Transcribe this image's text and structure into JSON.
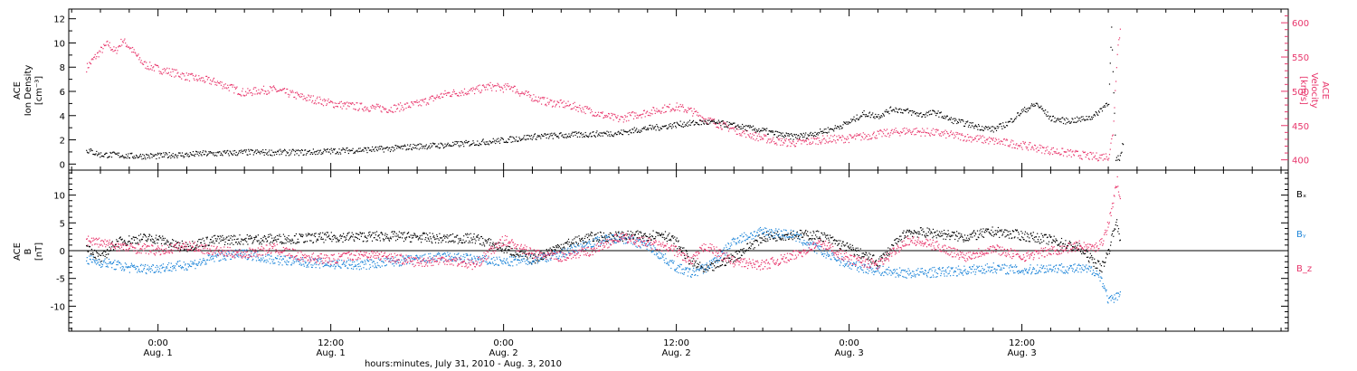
{
  "chart_data": [
    {
      "type": "scatter",
      "panel": "top",
      "ylabel_left": [
        "ACE",
        "Ion Density",
        "[cm⁻³]"
      ],
      "ylabel_right": [
        "ACE",
        "Velocity",
        "[km/s]"
      ],
      "ylim_left": [
        -0.5,
        12.8
      ],
      "ylim_right": [
        385,
        620
      ],
      "yticks_left": [
        0,
        2,
        4,
        6,
        8,
        10,
        12
      ],
      "yticks_right": [
        400,
        450,
        500,
        550,
        600
      ],
      "series": [
        {
          "axis": "left",
          "color": "#000000",
          "x_hours": [
            -5,
            -4.5,
            -4,
            -3,
            -2,
            -1,
            0,
            1,
            2,
            3,
            4,
            6,
            8,
            10,
            12,
            14,
            16,
            18,
            20,
            22,
            24,
            26,
            28,
            30,
            32,
            33,
            34,
            35,
            36,
            37,
            38,
            39,
            40,
            41,
            42,
            43,
            44,
            45,
            46,
            47,
            48,
            49,
            50,
            51,
            52,
            53,
            54,
            55,
            56,
            57,
            58,
            59,
            60,
            61,
            62,
            63,
            64,
            65,
            65.5,
            66,
            66.2,
            66.5,
            66.8,
            67
          ],
          "values": [
            1.2,
            1.0,
            0.8,
            0.8,
            0.7,
            0.7,
            0.7,
            0.8,
            0.8,
            0.9,
            0.9,
            1.0,
            1.0,
            1.0,
            1.1,
            1.2,
            1.3,
            1.5,
            1.6,
            1.8,
            2.0,
            2.3,
            2.4,
            2.5,
            2.6,
            2.8,
            3.0,
            3.1,
            3.3,
            3.4,
            3.5,
            3.4,
            3.2,
            3.0,
            2.8,
            2.5,
            2.3,
            2.4,
            2.7,
            3.0,
            3.5,
            4.2,
            4.0,
            4.6,
            4.4,
            4.1,
            4.3,
            3.7,
            3.4,
            3.1,
            2.9,
            3.4,
            4.4,
            5.0,
            3.8,
            3.6,
            3.7,
            4.0,
            4.6,
            5.2,
            11.2,
            0.4,
            0.6,
            1.8
          ]
        },
        {
          "axis": "right",
          "color": "#e8356b",
          "x_hours": [
            -5,
            -4.5,
            -4,
            -3.5,
            -3,
            -2.5,
            -2,
            -1.5,
            -1,
            0,
            1,
            2,
            3,
            4,
            5,
            6,
            7,
            8,
            9,
            10,
            11,
            12,
            13,
            14,
            16,
            18,
            20,
            22,
            23,
            24,
            24.5,
            25,
            26,
            27,
            28,
            29,
            30,
            31,
            32,
            33,
            34,
            35,
            36,
            37,
            38,
            39,
            40,
            41,
            42,
            43,
            44,
            45,
            46,
            48,
            50,
            52,
            54,
            56,
            58,
            60,
            62,
            64,
            65,
            66,
            66.3,
            66.6,
            66.8
          ],
          "values": [
            535,
            548,
            560,
            570,
            558,
            575,
            565,
            552,
            540,
            533,
            528,
            522,
            518,
            514,
            506,
            498,
            502,
            503,
            498,
            492,
            488,
            483,
            480,
            478,
            475,
            482,
            497,
            502,
            508,
            505,
            508,
            500,
            492,
            485,
            482,
            478,
            472,
            465,
            460,
            466,
            470,
            475,
            478,
            472,
            460,
            452,
            445,
            438,
            432,
            428,
            425,
            427,
            430,
            432,
            438,
            443,
            440,
            434,
            428,
            422,
            414,
            408,
            405,
            406,
            440,
            560,
            590
          ]
        }
      ]
    },
    {
      "type": "scatter",
      "panel": "bottom",
      "ylabel_left": [
        "ACE",
        "B",
        "[nT]"
      ],
      "ylim": [
        -14.5,
        14.5
      ],
      "yticks": [
        -10,
        -5,
        0,
        5,
        10
      ],
      "zero_line": true,
      "series": [
        {
          "name": "Bₓ",
          "color": "#000000",
          "x_hours": [
            -5,
            -4,
            -3,
            -2,
            -1,
            0,
            1,
            2,
            3,
            4,
            6,
            8,
            10,
            12,
            14,
            16,
            18,
            20,
            22,
            24,
            26,
            28,
            30,
            32,
            34,
            35,
            36,
            37,
            38,
            40,
            42,
            44,
            46,
            48,
            50,
            52,
            54,
            56,
            58,
            60,
            62,
            64,
            65,
            65.5,
            66,
            66.5,
            66.8
          ],
          "values": [
            1.0,
            -1.5,
            1.5,
            2.0,
            2.3,
            2.2,
            1.2,
            0.8,
            1.6,
            2.0,
            2.1,
            2.2,
            2.3,
            2.5,
            2.6,
            2.7,
            2.5,
            2.2,
            2.3,
            0.5,
            -1.5,
            1.0,
            2.5,
            2.7,
            2.8,
            3.2,
            1.5,
            -2.0,
            -3.5,
            -1.0,
            2.5,
            3.0,
            2.8,
            0.5,
            -2.0,
            3.5,
            3.2,
            2.5,
            3.5,
            2.8,
            2.0,
            0.5,
            -2.0,
            -3.0,
            0.0,
            5.5,
            2.0
          ]
        },
        {
          "name": "B_y",
          "color": "#1f86d9",
          "x_hours": [
            -5,
            -4,
            -3,
            -2,
            -1,
            0,
            1,
            2,
            3,
            4,
            6,
            8,
            10,
            12,
            14,
            16,
            18,
            20,
            22,
            24,
            26,
            28,
            30,
            32,
            34,
            35,
            36,
            37,
            38,
            39,
            40,
            42,
            44,
            46,
            48,
            50,
            52,
            54,
            56,
            58,
            60,
            62,
            64,
            65,
            65.5,
            66,
            66.5,
            66.8
          ],
          "values": [
            -1.5,
            -2.0,
            -2.5,
            -3.0,
            -3.2,
            -3.0,
            -2.8,
            -2.5,
            -2.0,
            -1.0,
            -0.5,
            -1.5,
            -2.0,
            -2.3,
            -2.5,
            -2.0,
            -1.5,
            -1.0,
            -1.5,
            -2.0,
            -1.5,
            -0.5,
            1.5,
            2.5,
            1.0,
            -1.0,
            -3.0,
            -4.0,
            -3.0,
            -1.0,
            2.0,
            3.5,
            3.0,
            0.0,
            -2.5,
            -3.5,
            -4.0,
            -3.8,
            -3.5,
            -3.0,
            -3.5,
            -3.0,
            -3.2,
            -3.5,
            -5.0,
            -9.0,
            -8.5,
            -7.0
          ]
        },
        {
          "name": "B_z",
          "color": "#e8356b",
          "x_hours": [
            -5,
            -4,
            -3,
            -2,
            -1,
            0,
            1,
            2,
            3,
            4,
            6,
            8,
            10,
            12,
            14,
            16,
            18,
            20,
            22,
            24,
            26,
            28,
            30,
            32,
            34,
            36,
            37,
            38,
            40,
            42,
            44,
            46,
            48,
            50,
            52,
            54,
            56,
            58,
            60,
            62,
            64,
            65,
            65.5,
            66,
            66.3,
            66.6,
            66.8
          ],
          "values": [
            2.0,
            1.5,
            1.0,
            0.5,
            0.5,
            0.0,
            0.5,
            1.0,
            0.5,
            0.0,
            -0.5,
            0.5,
            -1.0,
            -1.5,
            -0.5,
            -1.0,
            -2.0,
            -1.5,
            -2.5,
            2.0,
            -0.5,
            -1.0,
            0.0,
            2.5,
            1.5,
            0.0,
            -2.0,
            1.0,
            -2.0,
            -2.5,
            -1.0,
            1.5,
            -1.5,
            -2.5,
            2.0,
            1.0,
            -1.0,
            0.5,
            -1.0,
            0.0,
            1.0,
            0.5,
            1.5,
            5.0,
            9.0,
            12.5,
            10.0
          ]
        }
      ],
      "legend": [
        "Bₓ",
        "Bᵧ",
        "B_z"
      ]
    }
  ],
  "xaxis": {
    "xlim_hours": [
      -6.2,
      78.5
    ],
    "ticks": [
      {
        "hour": 0,
        "time": "0:00",
        "date": "Aug. 1"
      },
      {
        "hour": 12,
        "time": "12:00",
        "date": "Aug. 1"
      },
      {
        "hour": 24,
        "time": "0:00",
        "date": "Aug. 2"
      },
      {
        "hour": 36,
        "time": "12:00",
        "date": "Aug. 2"
      },
      {
        "hour": 48,
        "time": "0:00",
        "date": "Aug. 3"
      },
      {
        "hour": 60,
        "time": "12:00",
        "date": "Aug. 3"
      }
    ],
    "xlabel": "hours:minutes, July 31, 2010 - Aug.  3, 2010"
  },
  "colors": {
    "black": "#000000",
    "pink": "#e8356b",
    "blue": "#1f86d9"
  }
}
